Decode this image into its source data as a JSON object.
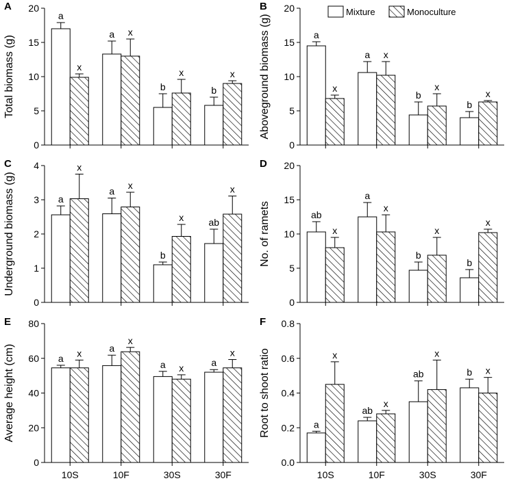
{
  "legend": {
    "mixture": "Mixture",
    "monoculture": "Monoculture"
  },
  "chart_data": [
    {
      "panel": "A",
      "type": "bar",
      "ylabel": "Total biomass (g)",
      "categories": [
        "10S",
        "10F",
        "30S",
        "30F"
      ],
      "ylim": [
        0,
        20
      ],
      "yticks": [
        0,
        5,
        10,
        15,
        20
      ],
      "series": [
        {
          "name": "Mixture",
          "values": [
            17.0,
            13.3,
            5.5,
            5.8
          ],
          "errors": [
            0.9,
            1.9,
            2.0,
            1.2
          ],
          "letters": [
            "a",
            "a",
            "b",
            "b"
          ]
        },
        {
          "name": "Monoculture",
          "values": [
            9.9,
            13.0,
            7.6,
            9.0
          ],
          "errors": [
            0.5,
            2.5,
            2.0,
            0.4
          ],
          "letters": [
            "x",
            "x",
            "x",
            "x"
          ]
        }
      ]
    },
    {
      "panel": "B",
      "type": "bar",
      "ylabel": "Aboveground biomass (g)",
      "categories": [
        "10S",
        "10F",
        "30S",
        "30F"
      ],
      "ylim": [
        0,
        20
      ],
      "yticks": [
        0,
        5,
        10,
        15,
        20
      ],
      "series": [
        {
          "name": "Mixture",
          "values": [
            14.5,
            10.6,
            4.4,
            4.0
          ],
          "errors": [
            0.6,
            1.6,
            1.9,
            0.9
          ],
          "letters": [
            "a",
            "a",
            "b",
            "b"
          ]
        },
        {
          "name": "Monoculture",
          "values": [
            6.8,
            10.2,
            5.7,
            6.3
          ],
          "errors": [
            0.5,
            2.0,
            1.8,
            0.2
          ],
          "letters": [
            "x",
            "x",
            "x",
            "x"
          ]
        }
      ]
    },
    {
      "panel": "C",
      "type": "bar",
      "ylabel": "Underground biomass (g)",
      "categories": [
        "10S",
        "10F",
        "30S",
        "30F"
      ],
      "ylim": [
        0,
        4
      ],
      "yticks": [
        0,
        1,
        2,
        3,
        4
      ],
      "series": [
        {
          "name": "Mixture",
          "values": [
            2.56,
            2.59,
            1.1,
            1.72
          ],
          "errors": [
            0.26,
            0.46,
            0.08,
            0.42
          ],
          "letters": [
            "a",
            "a",
            "b",
            "ab"
          ]
        },
        {
          "name": "Monoculture",
          "values": [
            3.03,
            2.79,
            1.93,
            2.58
          ],
          "errors": [
            0.72,
            0.43,
            0.35,
            0.53
          ],
          "letters": [
            "x",
            "x",
            "x",
            "x"
          ]
        }
      ]
    },
    {
      "panel": "D",
      "type": "bar",
      "ylabel": "No. of ramets",
      "categories": [
        "10S",
        "10F",
        "30S",
        "30F"
      ],
      "ylim": [
        0,
        20
      ],
      "yticks": [
        0,
        5,
        10,
        15,
        20
      ],
      "series": [
        {
          "name": "Mixture",
          "values": [
            10.3,
            12.5,
            4.7,
            3.6
          ],
          "errors": [
            1.5,
            2.1,
            1.2,
            1.2
          ],
          "letters": [
            "ab",
            "a",
            "b",
            "b"
          ]
        },
        {
          "name": "Monoculture",
          "values": [
            8.0,
            10.3,
            6.9,
            10.2
          ],
          "errors": [
            1.5,
            2.5,
            2.6,
            0.5
          ],
          "letters": [
            "x",
            "x",
            "x",
            "x"
          ]
        }
      ]
    },
    {
      "panel": "E",
      "type": "bar",
      "ylabel": "Average height (cm)",
      "categories": [
        "10S",
        "10F",
        "30S",
        "30F"
      ],
      "ylim": [
        0,
        80
      ],
      "yticks": [
        0,
        20,
        40,
        60,
        80
      ],
      "series": [
        {
          "name": "Mixture",
          "values": [
            54.5,
            55.8,
            49.5,
            52.0
          ],
          "errors": [
            1.5,
            6.0,
            3.0,
            1.5
          ],
          "letters": [
            "a",
            "a",
            "a",
            "a"
          ]
        },
        {
          "name": "Monoculture",
          "values": [
            54.5,
            63.8,
            48.0,
            54.5
          ],
          "errors": [
            4.5,
            2.5,
            2.5,
            4.8
          ],
          "letters": [
            "x",
            "x",
            "x",
            "x"
          ]
        }
      ]
    },
    {
      "panel": "F",
      "type": "bar",
      "ylabel": "Root to shoot ratio",
      "categories": [
        "10S",
        "10F",
        "30S",
        "30F"
      ],
      "ylim": [
        0,
        0.8
      ],
      "yticks": [
        "0.0",
        "0.2",
        "0.4",
        "0.6",
        "0.8"
      ],
      "series": [
        {
          "name": "Mixture",
          "values": [
            0.17,
            0.24,
            0.35,
            0.43
          ],
          "errors": [
            0.01,
            0.02,
            0.12,
            0.05
          ],
          "letters": [
            "a",
            "ab",
            "ab",
            "b"
          ]
        },
        {
          "name": "Monoculture",
          "values": [
            0.45,
            0.28,
            0.42,
            0.4
          ],
          "errors": [
            0.13,
            0.02,
            0.17,
            0.09
          ],
          "letters": [
            "x",
            "x",
            "x",
            "x"
          ]
        }
      ]
    }
  ]
}
